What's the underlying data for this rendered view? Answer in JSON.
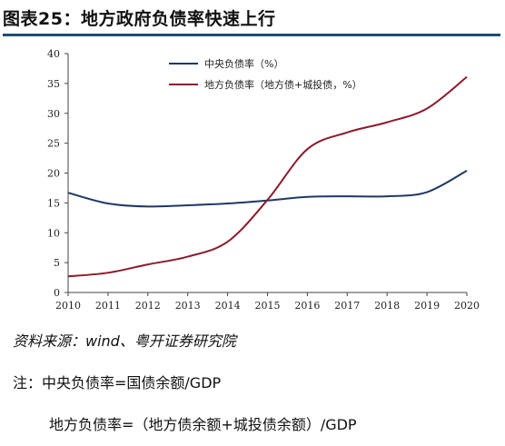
{
  "title": "图表25：地方政府负债率快速上行",
  "source": "资料来源：wind、粤开证券研究院",
  "notes": [
    "注：中央负债率=国债余额/GDP",
    "地方负债率=（地方债余额+城投债余额）/GDP"
  ],
  "chart_data": {
    "type": "line",
    "title": "",
    "xlabel": "",
    "ylabel": "",
    "x": [
      2010,
      2011,
      2012,
      2013,
      2014,
      2015,
      2016,
      2017,
      2018,
      2019,
      2020
    ],
    "xlim": [
      2010,
      2020
    ],
    "ylim": [
      0,
      40
    ],
    "yticks": [
      0,
      5,
      10,
      15,
      20,
      25,
      30,
      35,
      40
    ],
    "grid": false,
    "legend_position": "top",
    "series": [
      {
        "name": "中央负债率（%）",
        "color": "#1f3864",
        "values": [
          16.7,
          14.9,
          14.4,
          14.6,
          14.9,
          15.4,
          16.0,
          16.1,
          16.1,
          16.8,
          20.4
        ]
      },
      {
        "name": "地方负债率（地方债+城投债，%）",
        "color": "#8b1a2b",
        "values": [
          2.7,
          3.3,
          4.7,
          6.0,
          8.5,
          15.5,
          24.0,
          26.8,
          28.5,
          30.8,
          36.1
        ]
      }
    ]
  }
}
